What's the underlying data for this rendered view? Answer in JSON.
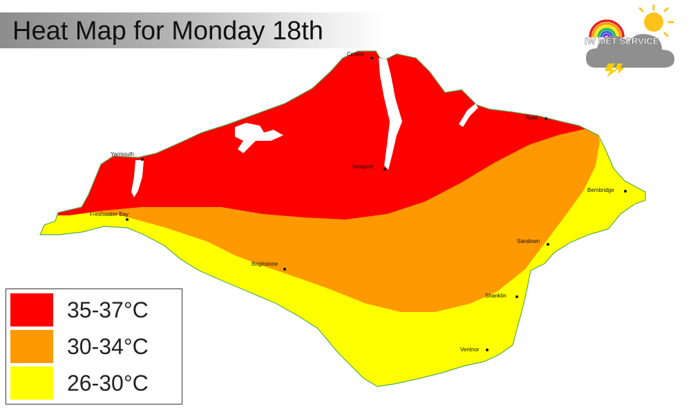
{
  "title": "Heat Map for Monday 18th",
  "logo": {
    "text": "IW MET SERVICE",
    "icon": "weather-cloud-rainbow-sun-lightning-icon"
  },
  "colors": {
    "hot": "#ff0000",
    "warm": "#ff9900",
    "mild": "#ffff00",
    "title_bar": "#9e9e9e"
  },
  "legend": [
    {
      "label": "35-37°C",
      "color": "#ff0000"
    },
    {
      "label": "30-34°C",
      "color": "#ff9900"
    },
    {
      "label": "26-30°C",
      "color": "#ffff00"
    }
  ],
  "towns": {
    "cowes": "Cowes",
    "ryde": "Ryde",
    "yarmouth": "Yarmouth",
    "newport": "Newport",
    "bembridge": "Bembridge",
    "freshwater_bay": "Freshwater Bay",
    "sandown": "Sandown",
    "brighstone": "Brighstone",
    "shanklin": "Shanklin",
    "ventnor": "Ventnor"
  }
}
